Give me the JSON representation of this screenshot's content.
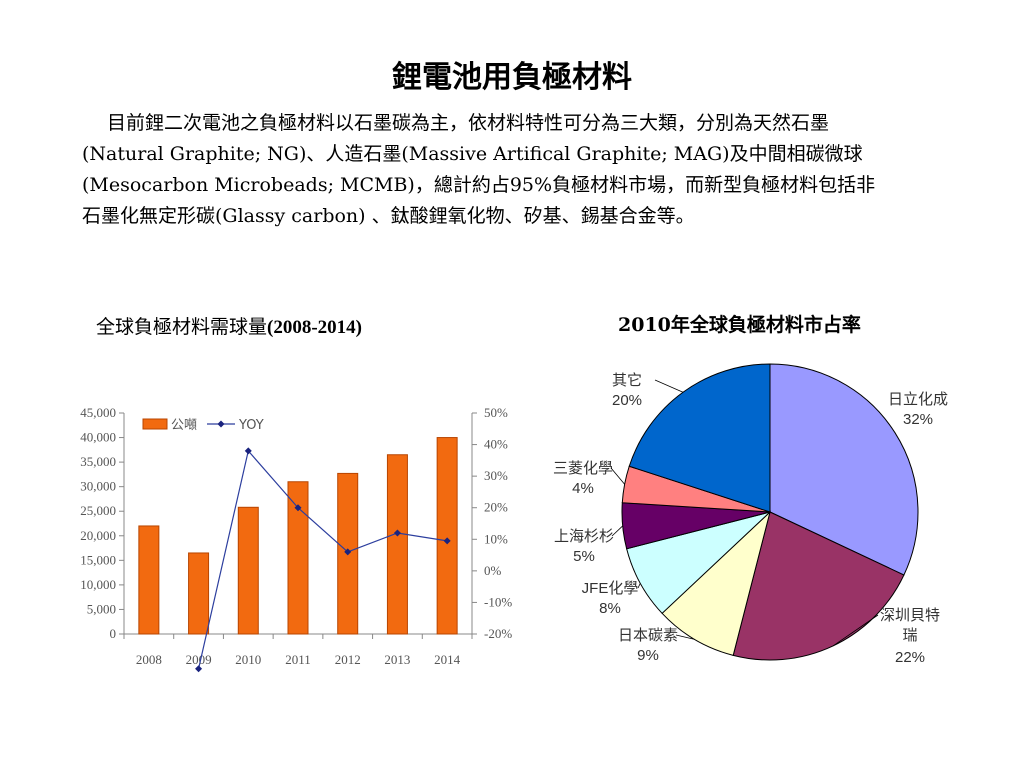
{
  "page": {
    "title": "鋰電池用負極材料",
    "intro": "目前鋰二次電池之負極材料以石墨碳為主，依材料特性可分為三大類，分別為天然石墨(Natural Graphite; NG)、人造石墨(Massive Artifical Graphite; MAG)及中間相碳微球(Mesocarbon Microbeads; MCMB)，總計約占95%負極材料市場，而新型負極材料包括非石墨化無定形碳(Glassy carbon) 、鈦酸鋰氧化物、矽基、錫基合金等。"
  },
  "chart_data": [
    {
      "type": "bar",
      "title_prefix": "全球負極材料需球量",
      "title_suffix": "(2008-2014)",
      "categories": [
        "2008",
        "2009",
        "2010",
        "2011",
        "2012",
        "2013",
        "2014"
      ],
      "series": [
        {
          "name": "公噸",
          "type": "bar",
          "axis": "left",
          "color": "#F26A10",
          "values": [
            22000,
            16500,
            25800,
            31000,
            32700,
            36500,
            40000
          ]
        },
        {
          "name": "YOY",
          "type": "line",
          "axis": "right",
          "color": "#1A237E",
          "values": [
            null,
            -31,
            38,
            20,
            6,
            12,
            9.5
          ]
        }
      ],
      "y_left": {
        "min": 0,
        "max": 45000,
        "ticks": [
          "45,000",
          "40,000",
          "35,000",
          "30,000",
          "25,000",
          "20,000",
          "15,000",
          "10,000",
          "5,000",
          "0"
        ]
      },
      "y_right": {
        "min": -20,
        "max": 50,
        "ticks": [
          "50%",
          "40%",
          "30%",
          "20%",
          "10%",
          "0%",
          "-10%",
          "-20%"
        ]
      },
      "legend_position": "top-left",
      "grid": false
    },
    {
      "type": "pie",
      "title": "2010年全球負極材料市占率",
      "slices": [
        {
          "label": "日立化成",
          "value": 32,
          "pct": "32%",
          "color": "#9999FF"
        },
        {
          "label": "深圳貝特瑞",
          "value": 22,
          "pct": "22%",
          "color": "#993366"
        },
        {
          "label": "日本碳素",
          "value": 9,
          "pct": "9%",
          "color": "#FFFFCC"
        },
        {
          "label": "JFE化學",
          "value": 8,
          "pct": "8%",
          "color": "#CCFFFF"
        },
        {
          "label": "上海杉杉",
          "value": 5,
          "pct": "5%",
          "color": "#660066"
        },
        {
          "label": "三菱化學",
          "value": 4,
          "pct": "4%",
          "color": "#FF8080"
        },
        {
          "label": "其它",
          "value": 20,
          "pct": "20%",
          "color": "#0066CC"
        }
      ]
    }
  ]
}
